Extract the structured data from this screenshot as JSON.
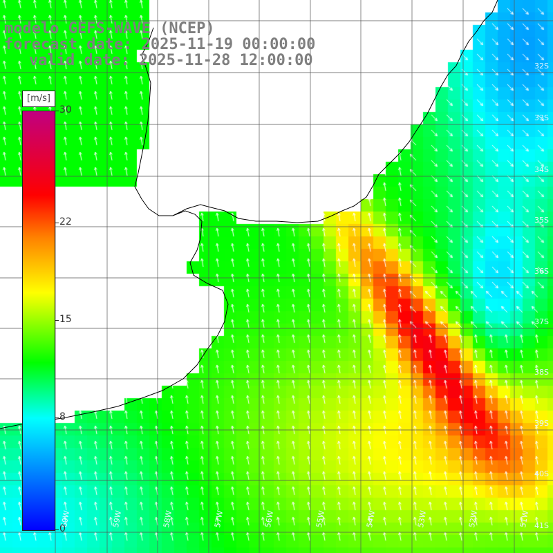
{
  "title": {
    "line1": "modelo GEFS-WAVE (NCEP)",
    "line2": "forecast date: 2025-11-19 00:00:00",
    "line3": "valid date: 2025-11-28 12:00:00"
  },
  "colorbar": {
    "unit": "[m/s]",
    "min": 0,
    "max": 30,
    "ticks": [
      "30",
      "22",
      "15",
      "8",
      "0"
    ],
    "tick_values": [
      30,
      22,
      15,
      8,
      0
    ],
    "colors": [
      "#0000ff",
      "#00c0ff",
      "#00ffff",
      "#00ff00",
      "#ffff00",
      "#ff8000",
      "#ff0000",
      "#c00080"
    ],
    "color_stops": [
      0,
      6,
      8,
      12,
      17,
      21,
      24,
      30
    ]
  },
  "map": {
    "field_name": "wind speed",
    "land_color": "#ffffff",
    "coast_color": "#000000",
    "grid_color": "#555555",
    "arrow_color": "#ffffff",
    "lat_labels": [
      "32S",
      "33S",
      "34S",
      "35S",
      "36S",
      "37S",
      "38S",
      "39S",
      "40S",
      "41S"
    ],
    "lon_labels": [
      "60W",
      "59W",
      "58W",
      "57W",
      "56W",
      "55W",
      "54W",
      "53W",
      "52W",
      "51W"
    ]
  }
}
